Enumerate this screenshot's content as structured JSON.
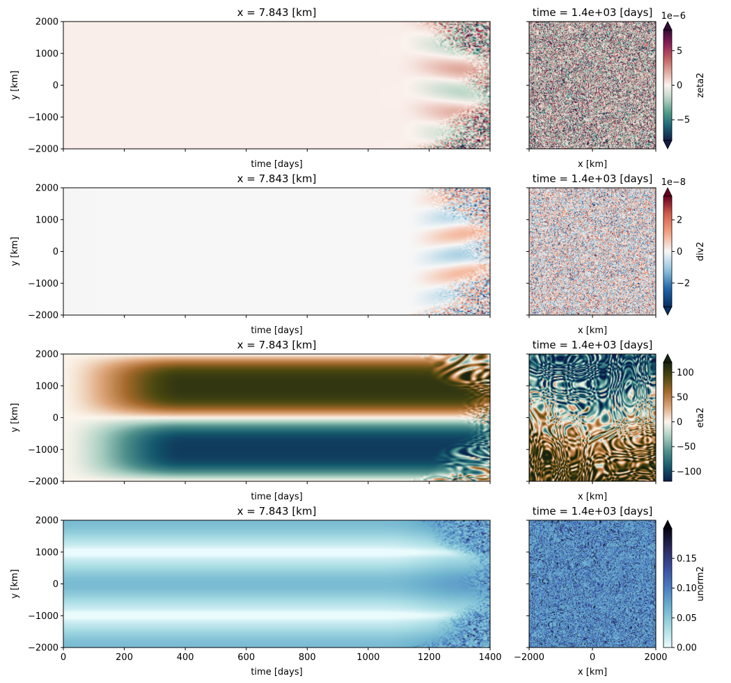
{
  "chart_data": [
    {
      "type": "heatmap",
      "panel": "hovmoller",
      "title": "x = 7.843 [km]",
      "xlabel": "time [days]",
      "ylabel": "y [km]",
      "xlim": [
        0,
        1400
      ],
      "ylim": [
        -2000,
        2000
      ],
      "xticks": [
        "0",
        "200",
        "400",
        "600",
        "800",
        "1000",
        "1200",
        "1400"
      ],
      "yticks": [
        "2000",
        "1000",
        "0",
        "−1000",
        "−2000"
      ],
      "show_xticklabels": false,
      "colormap": "curl"
    },
    {
      "type": "heatmap",
      "panel": "snapshot",
      "title": "time = 1.4e+03 [days]",
      "xlabel": "x [km]",
      "xlim": [
        -2000,
        2000
      ],
      "ylim": [
        -2000,
        2000
      ],
      "xticks": [
        "−2000",
        "0",
        "2000"
      ],
      "show_xticklabels": false,
      "colormap": "curl",
      "colorbar": {
        "label": "zeta2",
        "ticks": [
          "5",
          "0",
          "−5"
        ],
        "offset": "1e−6",
        "range": [
          -8,
          8
        ],
        "tick_values": [
          5,
          0,
          -5
        ],
        "extend": "both"
      }
    },
    {
      "type": "heatmap",
      "panel": "hovmoller",
      "title": "x = 7.843 [km]",
      "xlabel": "time [days]",
      "ylabel": "y [km]",
      "xlim": [
        0,
        1400
      ],
      "ylim": [
        -2000,
        2000
      ],
      "xticks": [
        "0",
        "200",
        "400",
        "600",
        "800",
        "1000",
        "1200",
        "1400"
      ],
      "yticks": [
        "2000",
        "1000",
        "0",
        "−1000",
        "−2000"
      ],
      "show_xticklabels": false,
      "colormap": "RdBu_r"
    },
    {
      "type": "heatmap",
      "panel": "snapshot",
      "title": "time = 1.4e+03 [days]",
      "xlabel": "x [km]",
      "xlim": [
        -2000,
        2000
      ],
      "ylim": [
        -2000,
        2000
      ],
      "xticks": [
        "−2000",
        "0",
        "2000"
      ],
      "show_xticklabels": false,
      "colormap": "RdBu_r",
      "colorbar": {
        "label": "div2",
        "ticks": [
          "2",
          "0",
          "−2"
        ],
        "offset": "1e−8",
        "range": [
          -3.5,
          3.5
        ],
        "tick_values": [
          2,
          0,
          -2
        ],
        "extend": "both"
      }
    },
    {
      "type": "heatmap",
      "panel": "hovmoller",
      "title": "x = 7.843 [km]",
      "xlabel": "time [days]",
      "ylabel": "y [km]",
      "xlim": [
        0,
        1400
      ],
      "ylim": [
        -2000,
        2000
      ],
      "xticks": [
        "0",
        "200",
        "400",
        "600",
        "800",
        "1000",
        "1200",
        "1400"
      ],
      "yticks": [
        "2000",
        "1000",
        "0",
        "−1000",
        "−2000"
      ],
      "show_xticklabels": false,
      "colormap": "tarn"
    },
    {
      "type": "heatmap",
      "panel": "snapshot",
      "title": "time = 1.4e+03 [days]",
      "xlabel": "x [km]",
      "xlim": [
        -2000,
        2000
      ],
      "ylim": [
        -2000,
        2000
      ],
      "xticks": [
        "−2000",
        "0",
        "2000"
      ],
      "show_xticklabels": false,
      "colormap": "tarn",
      "colorbar": {
        "label": "eta2",
        "ticks": [
          "100",
          "50",
          "0",
          "−50",
          "−100"
        ],
        "offset": "",
        "range": [
          -120,
          120
        ],
        "tick_values": [
          100,
          50,
          0,
          -50,
          -100
        ],
        "extend": "max"
      }
    },
    {
      "type": "heatmap",
      "panel": "hovmoller",
      "title": "x = 7.843 [km]",
      "xlabel": "time [days]",
      "ylabel": "y [km]",
      "xlim": [
        0,
        1400
      ],
      "ylim": [
        -2000,
        2000
      ],
      "xticks": [
        "0",
        "200",
        "400",
        "600",
        "800",
        "1000",
        "1200",
        "1400"
      ],
      "yticks": [
        "2000",
        "1000",
        "0",
        "−1000",
        "−2000"
      ],
      "show_xticklabels": true,
      "colormap": "ice_r"
    },
    {
      "type": "heatmap",
      "panel": "snapshot",
      "title": "time = 1.4e+03 [days]",
      "xlabel": "x [km]",
      "xlim": [
        -2000,
        2000
      ],
      "ylim": [
        -2000,
        2000
      ],
      "xticks": [
        "−2000",
        "0",
        "2000"
      ],
      "show_xticklabels": true,
      "colormap": "ice_r",
      "colorbar": {
        "label": "unorm2",
        "ticks": [
          "0.15",
          "0.10",
          "0.05",
          "0.00"
        ],
        "offset": "",
        "range": [
          0,
          0.2
        ],
        "tick_values": [
          0.15,
          0.1,
          0.05,
          0.0
        ],
        "extend": "max"
      }
    }
  ]
}
